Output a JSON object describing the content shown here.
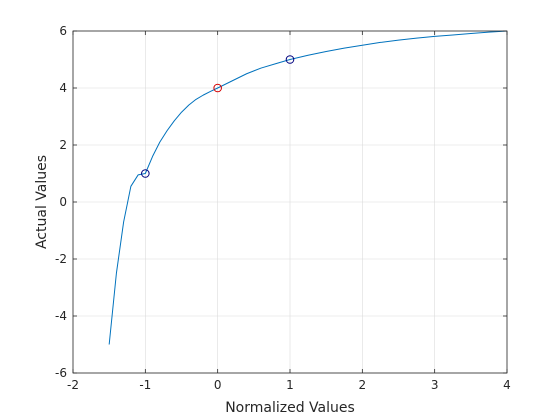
{
  "chart_data": {
    "type": "line",
    "title": "",
    "xlabel": "Normalized Values",
    "ylabel": "Actual Values",
    "xlim": [
      -2,
      4
    ],
    "ylim": [
      -6,
      6
    ],
    "xticks": [
      -2,
      -1,
      0,
      1,
      2,
      3,
      4
    ],
    "yticks": [
      -6,
      -4,
      -2,
      0,
      2,
      4,
      6
    ],
    "xtick_labels": [
      "-2",
      "-1",
      "0",
      "1",
      "2",
      "3",
      "4"
    ],
    "ytick_labels": [
      "-6",
      "-4",
      "-2",
      "0",
      "2",
      "4",
      "6"
    ],
    "grid": true,
    "legend": "none",
    "series": [
      {
        "color": "#0072bd",
        "x": [
          -1.5,
          -1.4,
          -1.3,
          -1.2,
          -1.1,
          -1.0,
          -0.9,
          -0.8,
          -0.7,
          -0.6,
          -0.5,
          -0.4,
          -0.3,
          -0.2,
          -0.1,
          0.0,
          0.2,
          0.4,
          0.6,
          0.8,
          1.0,
          1.25,
          1.5,
          1.75,
          2.0,
          2.25,
          2.5,
          2.75,
          3.0,
          3.25,
          3.5,
          3.75,
          4.0
        ],
        "y": [
          -5.0,
          -2.5,
          -0.7,
          0.55,
          0.95,
          1.0,
          1.6,
          2.1,
          2.5,
          2.85,
          3.15,
          3.4,
          3.6,
          3.75,
          3.88,
          4.0,
          4.25,
          4.5,
          4.7,
          4.85,
          5.0,
          5.15,
          5.28,
          5.4,
          5.5,
          5.6,
          5.68,
          5.75,
          5.81,
          5.86,
          5.91,
          5.96,
          6.0
        ]
      }
    ],
    "markers": [
      {
        "x": -1,
        "y": 1,
        "color": "#00007f",
        "shape": "circle"
      },
      {
        "x": 0,
        "y": 4,
        "color": "#d40000",
        "shape": "circle"
      },
      {
        "x": 1,
        "y": 5,
        "color": "#00007f",
        "shape": "circle"
      }
    ]
  }
}
